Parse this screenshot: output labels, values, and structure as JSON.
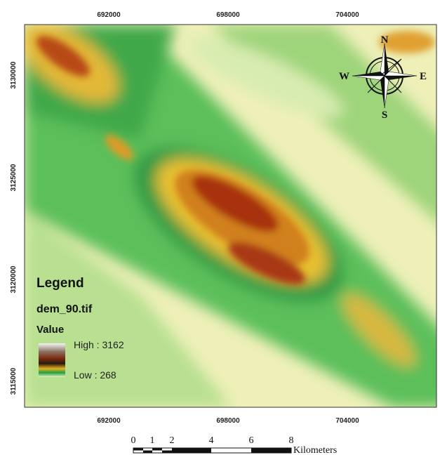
{
  "map": {
    "top_labels": [
      "692000",
      "698000",
      "704000"
    ],
    "bottom_labels": [
      "692000",
      "698000",
      "704000"
    ],
    "left_labels": [
      "3130000",
      "3125000",
      "3120000",
      "3115000"
    ],
    "compass": {
      "n": "N",
      "e": "E",
      "s": "S",
      "w": "W"
    },
    "legend": {
      "title": "Legend",
      "layer": "dem_90.tif",
      "field": "Value",
      "high": "High : 3162",
      "low": "Low : 268"
    },
    "scale_bar": {
      "ticks": [
        "0",
        "1",
        "2",
        "4",
        "6",
        "8"
      ],
      "unit": "Kilometers"
    }
  }
}
